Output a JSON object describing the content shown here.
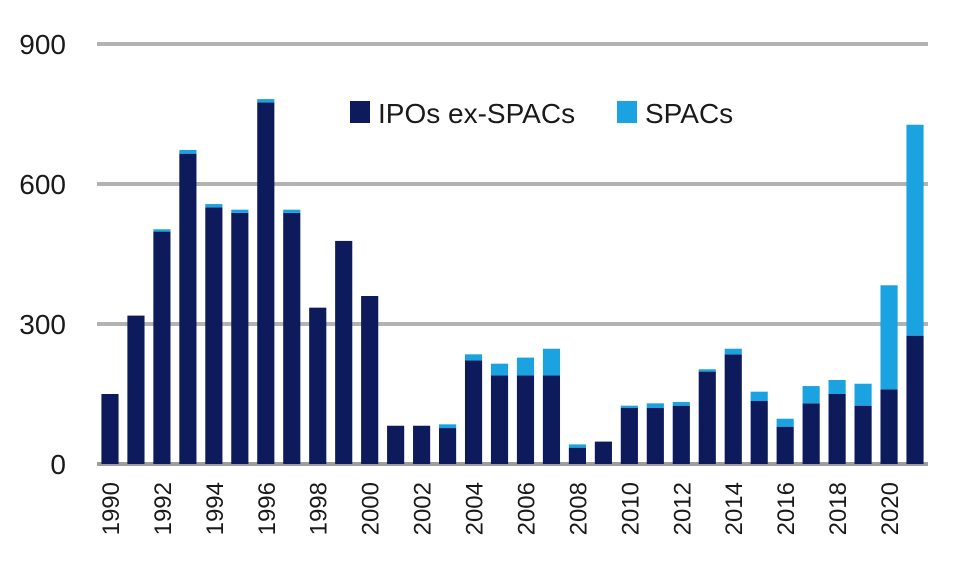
{
  "chart_data": {
    "type": "bar",
    "stacked": true,
    "title": "",
    "xlabel": "",
    "ylabel": "",
    "ylim": [
      0,
      900
    ],
    "yticks": [
      0,
      300,
      600,
      900
    ],
    "grid": true,
    "legend_position": "top-center",
    "categories": [
      1990,
      1991,
      1992,
      1993,
      1994,
      1995,
      1996,
      1997,
      1998,
      1999,
      2000,
      2001,
      2002,
      2003,
      2004,
      2005,
      2006,
      2007,
      2008,
      2009,
      2010,
      2011,
      2012,
      2013,
      2014,
      2015,
      2016,
      2017,
      2018,
      2019,
      2020,
      2021
    ],
    "tick_labels": [
      "1990",
      "1992",
      "1994",
      "1996",
      "1998",
      "2000",
      "2002",
      "2004",
      "2006",
      "2008",
      "2010",
      "2012",
      "2014",
      "2016",
      "2018",
      "2020"
    ],
    "series": [
      {
        "name": "IPOs ex-SPACs",
        "color": "#0d1a5c",
        "values": [
          150,
          318,
          498,
          665,
          550,
          538,
          775,
          538,
          335,
          478,
          360,
          82,
          82,
          77,
          222,
          190,
          190,
          190,
          35,
          48,
          120,
          120,
          125,
          198,
          235,
          135,
          80,
          130,
          150,
          125,
          160,
          275
        ]
      },
      {
        "name": "SPACs",
        "color": "#1aa3e0",
        "values": [
          0,
          0,
          5,
          8,
          7,
          7,
          7,
          7,
          0,
          0,
          0,
          0,
          0,
          8,
          13,
          25,
          38,
          57,
          7,
          0,
          5,
          10,
          8,
          5,
          12,
          20,
          17,
          37,
          30,
          47,
          223,
          452
        ]
      }
    ]
  }
}
